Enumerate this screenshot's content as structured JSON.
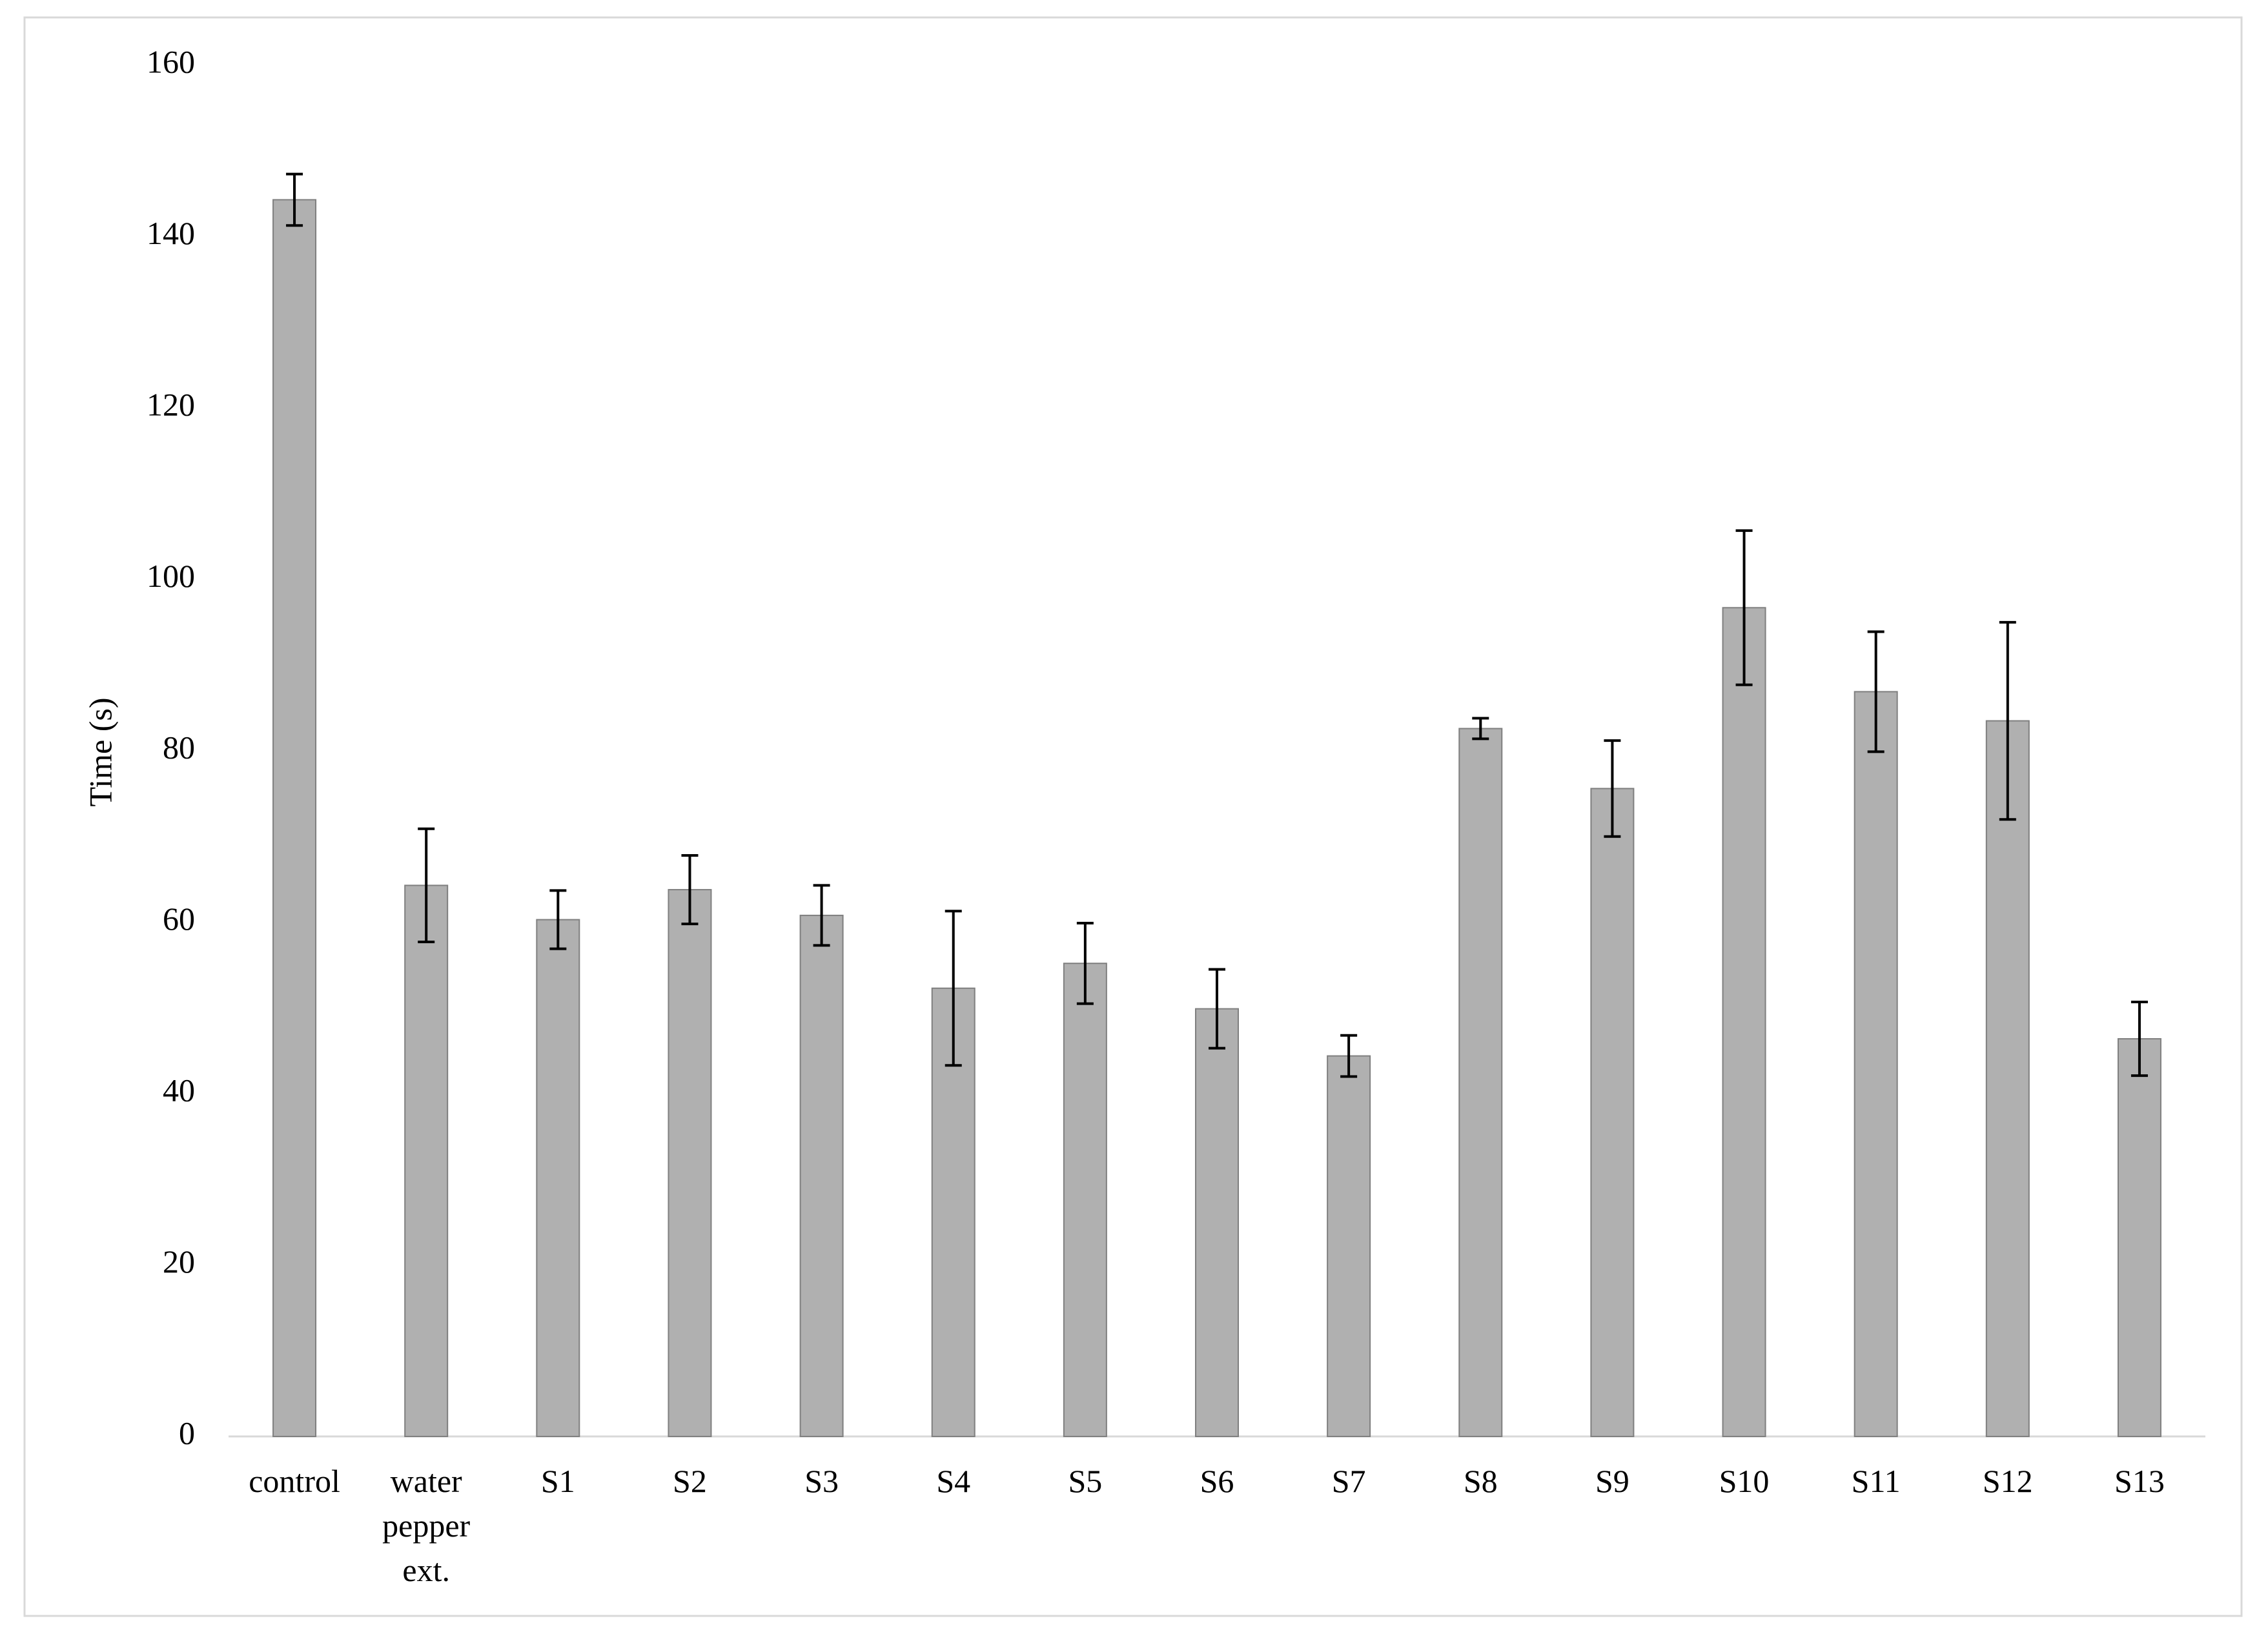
{
  "chart_data": {
    "type": "bar",
    "y_label": "Time (s)",
    "categories": [
      "control",
      "water pepper ext.",
      "S1",
      "S2",
      "S3",
      "S4",
      "S5",
      "S6",
      "S7",
      "S8",
      "S9",
      "S10",
      "S11",
      "S12",
      "S13"
    ],
    "values": [
      144.3,
      64.3,
      60.3,
      63.8,
      60.8,
      52.3,
      55.2,
      49.9,
      44.4,
      82.6,
      75.6,
      96.7,
      86.9,
      83.5,
      46.4
    ],
    "errors": [
      3,
      6.6,
      3.4,
      4,
      3.5,
      9,
      4.7,
      4.6,
      2.4,
      1.2,
      5.6,
      9,
      7,
      11.5,
      4.3
    ],
    "color": "#b0b0b0",
    "ylim": [
      0,
      160
    ],
    "yticks": [
      0,
      20,
      40,
      60,
      80,
      100,
      120,
      140,
      160
    ],
    "grid": false
  }
}
